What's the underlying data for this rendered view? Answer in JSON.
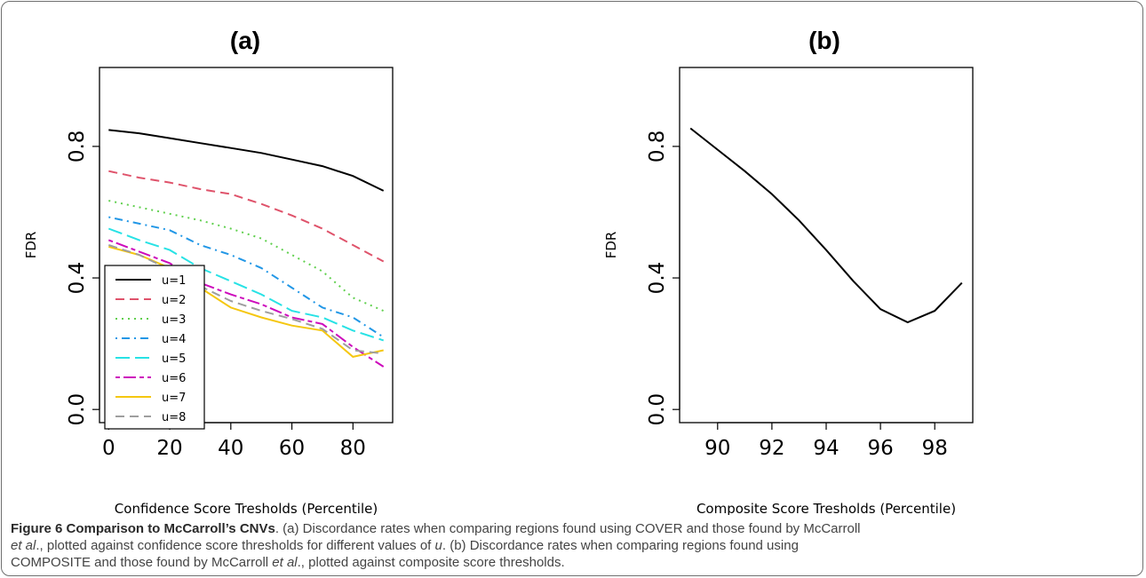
{
  "chart_data": [
    {
      "type": "line",
      "title": "(a)",
      "xlabel": "Confidence Score Tresholds (Percentile)",
      "ylabel": "FDR",
      "xlim": [
        -3,
        93
      ],
      "ylim": [
        -0.04,
        1.04
      ],
      "xticks": [
        "0",
        "20",
        "40",
        "60",
        "80"
      ],
      "yticks": [
        "0.0",
        "0.4",
        "0.8"
      ],
      "legend_position": "bottom-left",
      "x": [
        0,
        10,
        20,
        30,
        40,
        50,
        60,
        70,
        80,
        90
      ],
      "series": [
        {
          "name": "u=1",
          "color": "#000000",
          "dash": "solid",
          "values": [
            0.85,
            0.84,
            0.825,
            0.81,
            0.795,
            0.78,
            0.76,
            0.74,
            0.71,
            0.665
          ]
        },
        {
          "name": "u=2",
          "color": "#df536b",
          "dash": "dashed",
          "values": [
            0.725,
            0.705,
            0.69,
            0.67,
            0.655,
            0.625,
            0.59,
            0.55,
            0.5,
            0.45
          ]
        },
        {
          "name": "u=3",
          "color": "#61d04f",
          "dash": "dotted",
          "values": [
            0.635,
            0.615,
            0.595,
            0.575,
            0.55,
            0.52,
            0.47,
            0.42,
            0.34,
            0.3
          ]
        },
        {
          "name": "u=4",
          "color": "#2297e6",
          "dash": "dotdash",
          "values": [
            0.585,
            0.565,
            0.545,
            0.5,
            0.47,
            0.43,
            0.37,
            0.31,
            0.28,
            0.22
          ]
        },
        {
          "name": "u=5",
          "color": "#28e2e5",
          "dash": "longdash",
          "values": [
            0.55,
            0.515,
            0.485,
            0.43,
            0.39,
            0.35,
            0.3,
            0.28,
            0.24,
            0.21
          ]
        },
        {
          "name": "u=6",
          "color": "#cd0bbc",
          "dash": "twodash",
          "values": [
            0.515,
            0.48,
            0.445,
            0.385,
            0.35,
            0.32,
            0.28,
            0.26,
            0.19,
            0.13
          ]
        },
        {
          "name": "u=7",
          "color": "#f5c710",
          "dash": "solid",
          "values": [
            0.495,
            0.47,
            0.43,
            0.37,
            0.31,
            0.28,
            0.255,
            0.24,
            0.16,
            0.18
          ]
        },
        {
          "name": "u=8",
          "color": "#9e9e9e",
          "dash": "dashed",
          "values": [
            0.5,
            0.47,
            0.425,
            0.375,
            0.33,
            0.3,
            0.275,
            0.245,
            0.18,
            0.17
          ]
        }
      ]
    },
    {
      "type": "line",
      "title": "(b)",
      "xlabel": "Composite Score Tresholds (Percentile)",
      "ylabel": "FDR",
      "xlim": [
        88.6,
        99.4
      ],
      "ylim": [
        -0.04,
        1.04
      ],
      "xticks": [
        "90",
        "92",
        "94",
        "96",
        "98"
      ],
      "yticks": [
        "0.0",
        "0.4",
        "0.8"
      ],
      "x": [
        89,
        90,
        91,
        92,
        93,
        94,
        95,
        96,
        97,
        98,
        99
      ],
      "series": [
        {
          "color": "#000000",
          "dash": "solid",
          "values": [
            0.855,
            0.79,
            0.725,
            0.655,
            0.575,
            0.485,
            0.39,
            0.305,
            0.265,
            0.3,
            0.385
          ]
        }
      ]
    }
  ],
  "caption": {
    "title": "Figure 6 Comparison to McCarroll’s CNVs",
    "p1": ". (a) Discordance rates when comparing regions found using COVER and those found by McCarroll",
    "p2": "et al",
    "p3": "., plotted against confidence score thresholds for different values of ",
    "p4": "u",
    "p5": ". (b) Discordance rates when comparing regions found using",
    "p6": "COMPOSITE and those found by McCarroll ",
    "p7": "et al",
    "p8": "., plotted against composite score thresholds."
  }
}
